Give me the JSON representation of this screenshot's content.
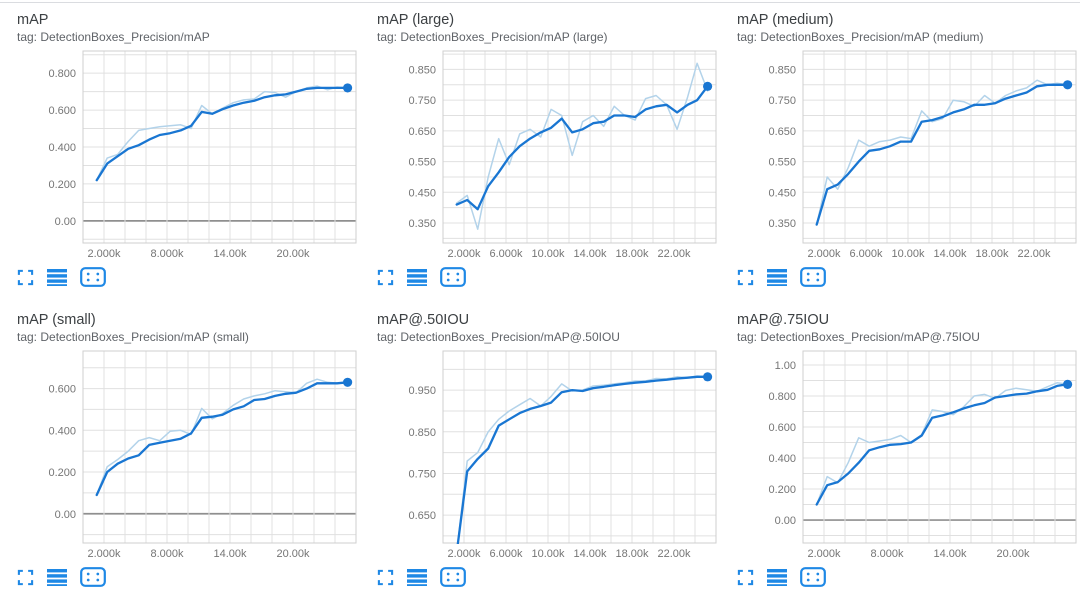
{
  "page": {
    "background": "#ffffff",
    "top_border_color": "#dadce0"
  },
  "colors": {
    "smoothed_line": "#1976d2",
    "raw_line": "#b3d3ea",
    "end_dot": "#1976d2",
    "grid": "#e0e0e0",
    "plot_border": "#cfcfcf",
    "zero_line": "#8f8f8f",
    "icon": "#1e88e5",
    "title_text": "#3c4043",
    "tag_text": "#5f6368",
    "tick_text": "#757575"
  },
  "card_actions": [
    {
      "name": "expand-card",
      "icon": "expand-icon"
    },
    {
      "name": "toggle-data-table",
      "icon": "data-table-icon"
    },
    {
      "name": "fit-domain-to-data",
      "icon": "fit-domain-icon"
    }
  ],
  "chart_data": [
    {
      "type": "line",
      "title": "mAP",
      "tag": "tag: DetectionBoxes_Precision/mAP",
      "x": [
        1300,
        2300,
        3300,
        4300,
        5300,
        6300,
        7300,
        8300,
        9300,
        10300,
        11300,
        12300,
        13300,
        14300,
        15300,
        16300,
        17300,
        18300,
        19300,
        20300,
        21300,
        22300,
        23300,
        24200,
        25200
      ],
      "series": [
        {
          "name": "raw",
          "values": [
            0.22,
            0.34,
            0.36,
            0.43,
            0.49,
            0.5,
            0.51,
            0.515,
            0.52,
            0.5,
            0.625,
            0.58,
            0.61,
            0.64,
            0.655,
            0.66,
            0.7,
            0.695,
            0.67,
            0.7,
            0.72,
            0.73,
            0.71,
            0.725,
            0.72
          ]
        },
        {
          "name": "smoothed",
          "values": [
            0.22,
            0.31,
            0.35,
            0.39,
            0.41,
            0.44,
            0.465,
            0.475,
            0.49,
            0.515,
            0.59,
            0.58,
            0.605,
            0.625,
            0.64,
            0.65,
            0.67,
            0.68,
            0.685,
            0.7,
            0.715,
            0.72,
            0.72,
            0.72,
            0.72
          ]
        }
      ],
      "end_dot_value": 0.72,
      "xlim": [
        0,
        26000
      ],
      "ylim": [
        -0.12,
        0.92
      ],
      "x_grid_step": 2000,
      "y_grid_step": 0.1,
      "zero_line": true,
      "x_ticks": [
        {
          "value": 2000,
          "label": "2.000k"
        },
        {
          "value": 8000,
          "label": "8.000k"
        },
        {
          "value": 14000,
          "label": "14.00k"
        },
        {
          "value": 20000,
          "label": "20.00k"
        }
      ],
      "y_ticks": [
        {
          "value": 0,
          "label": "0.00"
        },
        {
          "value": 0.2,
          "label": "0.200"
        },
        {
          "value": 0.4,
          "label": "0.400"
        },
        {
          "value": 0.6,
          "label": "0.600"
        },
        {
          "value": 0.8,
          "label": "0.800"
        }
      ]
    },
    {
      "type": "line",
      "title": "mAP (large)",
      "tag": "tag: DetectionBoxes_Precision/mAP (large)",
      "x": [
        1300,
        2300,
        3300,
        4300,
        5300,
        6300,
        7300,
        8300,
        9300,
        10300,
        11300,
        12300,
        13300,
        14300,
        15300,
        16300,
        17300,
        18300,
        19300,
        20300,
        21300,
        22300,
        23300,
        24200,
        25200
      ],
      "series": [
        {
          "name": "raw",
          "values": [
            0.415,
            0.44,
            0.33,
            0.5,
            0.625,
            0.54,
            0.64,
            0.655,
            0.63,
            0.72,
            0.7,
            0.57,
            0.68,
            0.7,
            0.665,
            0.73,
            0.7,
            0.685,
            0.755,
            0.765,
            0.735,
            0.655,
            0.76,
            0.87,
            0.78
          ]
        },
        {
          "name": "smoothed",
          "values": [
            0.41,
            0.425,
            0.395,
            0.47,
            0.515,
            0.565,
            0.6,
            0.625,
            0.645,
            0.66,
            0.69,
            0.645,
            0.655,
            0.675,
            0.68,
            0.7,
            0.7,
            0.695,
            0.72,
            0.73,
            0.735,
            0.71,
            0.735,
            0.75,
            0.795
          ]
        }
      ],
      "end_dot_value": 0.795,
      "xlim": [
        0,
        26000
      ],
      "ylim": [
        0.285,
        0.91
      ],
      "x_grid_step": 2000,
      "y_grid_step": 0.05,
      "zero_line": false,
      "x_ticks": [
        {
          "value": 2000,
          "label": "2.000k"
        },
        {
          "value": 6000,
          "label": "6.000k"
        },
        {
          "value": 10000,
          "label": "10.00k"
        },
        {
          "value": 14000,
          "label": "14.00k"
        },
        {
          "value": 18000,
          "label": "18.00k"
        },
        {
          "value": 22000,
          "label": "22.00k"
        }
      ],
      "y_ticks": [
        {
          "value": 0.35,
          "label": "0.350"
        },
        {
          "value": 0.45,
          "label": "0.450"
        },
        {
          "value": 0.55,
          "label": "0.550"
        },
        {
          "value": 0.65,
          "label": "0.650"
        },
        {
          "value": 0.75,
          "label": "0.750"
        },
        {
          "value": 0.85,
          "label": "0.850"
        }
      ]
    },
    {
      "type": "line",
      "title": "mAP (medium)",
      "tag": "tag: DetectionBoxes_Precision/mAP (medium)",
      "x": [
        1300,
        2300,
        3300,
        4300,
        5300,
        6300,
        7300,
        8300,
        9300,
        10300,
        11300,
        12300,
        13300,
        14300,
        15300,
        16300,
        17300,
        18300,
        19300,
        20300,
        21300,
        22300,
        23300,
        24200,
        25200
      ],
      "series": [
        {
          "name": "raw",
          "values": [
            0.345,
            0.5,
            0.46,
            0.53,
            0.62,
            0.6,
            0.615,
            0.62,
            0.63,
            0.625,
            0.715,
            0.68,
            0.69,
            0.75,
            0.745,
            0.73,
            0.765,
            0.74,
            0.765,
            0.78,
            0.79,
            0.815,
            0.8,
            0.805,
            0.8
          ]
        },
        {
          "name": "smoothed",
          "values": [
            0.345,
            0.46,
            0.475,
            0.51,
            0.55,
            0.585,
            0.59,
            0.6,
            0.615,
            0.615,
            0.68,
            0.685,
            0.695,
            0.71,
            0.72,
            0.735,
            0.735,
            0.74,
            0.755,
            0.765,
            0.775,
            0.795,
            0.8,
            0.8,
            0.8
          ]
        }
      ],
      "end_dot_value": 0.8,
      "xlim": [
        0,
        26000
      ],
      "ylim": [
        0.285,
        0.91
      ],
      "x_grid_step": 2000,
      "y_grid_step": 0.05,
      "zero_line": false,
      "x_ticks": [
        {
          "value": 2000,
          "label": "2.000k"
        },
        {
          "value": 6000,
          "label": "6.000k"
        },
        {
          "value": 10000,
          "label": "10.00k"
        },
        {
          "value": 14000,
          "label": "14.00k"
        },
        {
          "value": 18000,
          "label": "18.00k"
        },
        {
          "value": 22000,
          "label": "22.00k"
        }
      ],
      "y_ticks": [
        {
          "value": 0.35,
          "label": "0.350"
        },
        {
          "value": 0.45,
          "label": "0.450"
        },
        {
          "value": 0.55,
          "label": "0.550"
        },
        {
          "value": 0.65,
          "label": "0.650"
        },
        {
          "value": 0.75,
          "label": "0.750"
        },
        {
          "value": 0.85,
          "label": "0.850"
        }
      ]
    },
    {
      "type": "line",
      "title": "mAP (small)",
      "tag": "tag: DetectionBoxes_Precision/mAP (small)",
      "x": [
        1300,
        2300,
        3300,
        4300,
        5300,
        6300,
        7300,
        8300,
        9300,
        10300,
        11300,
        12300,
        13300,
        14300,
        15300,
        16300,
        17300,
        18300,
        19300,
        20300,
        21300,
        22300,
        23300,
        24200,
        25200
      ],
      "series": [
        {
          "name": "raw",
          "values": [
            0.09,
            0.225,
            0.26,
            0.3,
            0.35,
            0.365,
            0.35,
            0.395,
            0.4,
            0.38,
            0.505,
            0.455,
            0.48,
            0.52,
            0.55,
            0.565,
            0.575,
            0.59,
            0.585,
            0.58,
            0.625,
            0.645,
            0.63,
            0.625,
            0.63
          ]
        },
        {
          "name": "smoothed",
          "values": [
            0.09,
            0.2,
            0.24,
            0.265,
            0.28,
            0.33,
            0.34,
            0.35,
            0.36,
            0.385,
            0.46,
            0.465,
            0.475,
            0.5,
            0.515,
            0.545,
            0.55,
            0.565,
            0.575,
            0.58,
            0.6,
            0.625,
            0.625,
            0.625,
            0.63
          ]
        }
      ],
      "end_dot_value": 0.63,
      "xlim": [
        0,
        26000
      ],
      "ylim": [
        -0.14,
        0.78
      ],
      "x_grid_step": 2000,
      "y_grid_step": 0.1,
      "zero_line": true,
      "x_ticks": [
        {
          "value": 2000,
          "label": "2.000k"
        },
        {
          "value": 8000,
          "label": "8.000k"
        },
        {
          "value": 14000,
          "label": "14.00k"
        },
        {
          "value": 20000,
          "label": "20.00k"
        }
      ],
      "y_ticks": [
        {
          "value": 0,
          "label": "0.00"
        },
        {
          "value": 0.2,
          "label": "0.200"
        },
        {
          "value": 0.4,
          "label": "0.400"
        },
        {
          "value": 0.6,
          "label": "0.600"
        }
      ]
    },
    {
      "type": "line",
      "title": "mAP@.50IOU",
      "tag": "tag: DetectionBoxes_Precision/mAP@.50IOU",
      "x": [
        1300,
        2300,
        3300,
        4300,
        5300,
        6300,
        7300,
        8300,
        9300,
        10300,
        11300,
        12300,
        13300,
        14300,
        15300,
        16300,
        17300,
        18300,
        19300,
        20300,
        21300,
        22300,
        23300,
        24200,
        25200
      ],
      "series": [
        {
          "name": "raw",
          "values": [
            0.56,
            0.78,
            0.8,
            0.85,
            0.88,
            0.9,
            0.915,
            0.93,
            0.912,
            0.935,
            0.965,
            0.948,
            0.95,
            0.96,
            0.962,
            0.965,
            0.968,
            0.972,
            0.972,
            0.978,
            0.977,
            0.982,
            0.98,
            0.984,
            0.982
          ]
        },
        {
          "name": "smoothed",
          "values": [
            0.56,
            0.755,
            0.785,
            0.81,
            0.865,
            0.88,
            0.895,
            0.905,
            0.912,
            0.92,
            0.945,
            0.95,
            0.948,
            0.955,
            0.958,
            0.962,
            0.965,
            0.968,
            0.97,
            0.973,
            0.975,
            0.978,
            0.98,
            0.982,
            0.982
          ]
        }
      ],
      "end_dot_value": 0.982,
      "xlim": [
        0,
        26000
      ],
      "ylim": [
        0.583,
        1.044
      ],
      "x_grid_step": 2000,
      "y_grid_step": 0.05,
      "zero_line": false,
      "x_ticks": [
        {
          "value": 2000,
          "label": "2.000k"
        },
        {
          "value": 6000,
          "label": "6.000k"
        },
        {
          "value": 10000,
          "label": "10.00k"
        },
        {
          "value": 14000,
          "label": "14.00k"
        },
        {
          "value": 18000,
          "label": "18.00k"
        },
        {
          "value": 22000,
          "label": "22.00k"
        }
      ],
      "y_ticks": [
        {
          "value": 0.65,
          "label": "0.650"
        },
        {
          "value": 0.75,
          "label": "0.750"
        },
        {
          "value": 0.85,
          "label": "0.850"
        },
        {
          "value": 0.95,
          "label": "0.950"
        }
      ]
    },
    {
      "type": "line",
      "title": "mAP@.75IOU",
      "tag": "tag: DetectionBoxes_Precision/mAP@.75IOU",
      "x": [
        1300,
        2300,
        3300,
        4300,
        5300,
        6300,
        7300,
        8300,
        9300,
        10300,
        11300,
        12300,
        13300,
        14300,
        15300,
        16300,
        17300,
        18300,
        19300,
        20300,
        21300,
        22300,
        23300,
        24200,
        25200
      ],
      "series": [
        {
          "name": "raw",
          "values": [
            0.1,
            0.28,
            0.24,
            0.37,
            0.53,
            0.5,
            0.51,
            0.52,
            0.545,
            0.5,
            0.55,
            0.71,
            0.7,
            0.68,
            0.73,
            0.8,
            0.81,
            0.785,
            0.835,
            0.85,
            0.84,
            0.83,
            0.86,
            0.885,
            0.875
          ]
        },
        {
          "name": "smoothed",
          "values": [
            0.1,
            0.225,
            0.245,
            0.3,
            0.37,
            0.45,
            0.47,
            0.485,
            0.49,
            0.5,
            0.545,
            0.66,
            0.675,
            0.695,
            0.72,
            0.74,
            0.755,
            0.79,
            0.8,
            0.81,
            0.815,
            0.83,
            0.84,
            0.865,
            0.875
          ]
        }
      ],
      "end_dot_value": 0.875,
      "xlim": [
        0,
        26000
      ],
      "ylim": [
        -0.148,
        1.09
      ],
      "x_grid_step": 2000,
      "y_grid_step": 0.1,
      "zero_line": true,
      "x_ticks": [
        {
          "value": 2000,
          "label": "2.000k"
        },
        {
          "value": 8000,
          "label": "8.000k"
        },
        {
          "value": 14000,
          "label": "14.00k"
        },
        {
          "value": 20000,
          "label": "20.00k"
        }
      ],
      "y_ticks": [
        {
          "value": 0,
          "label": "0.00"
        },
        {
          "value": 0.2,
          "label": "0.200"
        },
        {
          "value": 0.4,
          "label": "0.400"
        },
        {
          "value": 0.6,
          "label": "0.600"
        },
        {
          "value": 0.8,
          "label": "0.800"
        },
        {
          "value": 1.0,
          "label": "1.00"
        }
      ]
    }
  ]
}
